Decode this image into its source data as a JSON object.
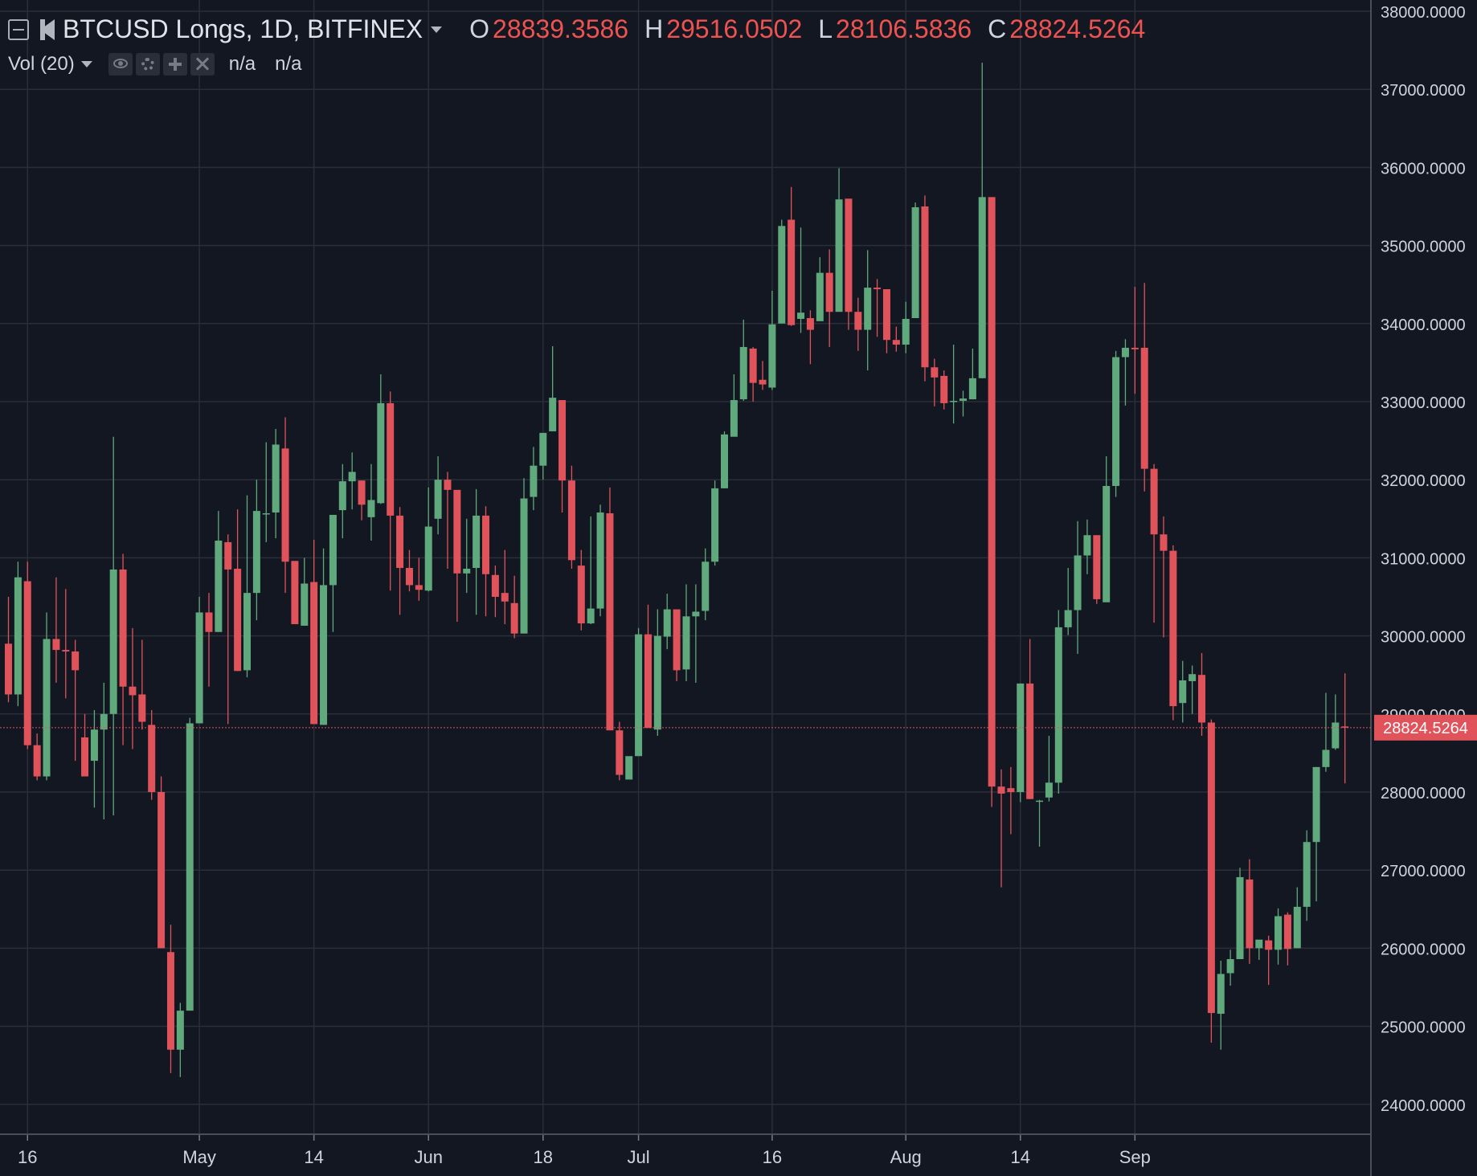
{
  "header": {
    "symbol_title": "BTCUSD Longs, 1D, BITFINEX",
    "open_key": "O",
    "open_value": "28839.3586",
    "high_key": "H",
    "high_value": "29516.0502",
    "low_key": "L",
    "low_value": "28106.5836",
    "close_key": "C",
    "close_value": "28824.5264"
  },
  "volume_indicator": {
    "label": "Vol (20)",
    "value_1": "n/a",
    "value_2": "n/a",
    "icons": [
      "eye-icon",
      "gear-icon",
      "plus-icon",
      "close-icon"
    ]
  },
  "colors": {
    "background": "#131722",
    "grid": "#2a2e39",
    "up": "#5fa97c",
    "down": "#e0535b",
    "price_line": "#e0535b",
    "text": "#d1d4dc"
  },
  "chart_data": {
    "type": "candlestick",
    "y_axis": {
      "ticks": [
        "24000.0000",
        "25000.0000",
        "26000.0000",
        "27000.0000",
        "28000.0000",
        "29000.0000",
        "30000.0000",
        "31000.0000",
        "32000.0000",
        "33000.0000",
        "34000.0000",
        "35000.0000",
        "36000.0000",
        "37000.0000",
        "38000.0000"
      ],
      "ylim": [
        23600,
        38000
      ],
      "side": "right"
    },
    "x_axis": {
      "labels": [
        "16",
        "May",
        "14",
        "Jun",
        "18",
        "Jul",
        "16",
        "Aug",
        "14",
        "Sep"
      ]
    },
    "last_price": "28824.5264",
    "grid": true,
    "ohlc": [
      [
        29900,
        29250,
        30500,
        29150
      ],
      [
        29250,
        30750,
        30950,
        29100
      ],
      [
        30700,
        28600,
        30950,
        28550
      ],
      [
        28600,
        28200,
        28750,
        28150
      ],
      [
        28200,
        29960,
        30300,
        28150
      ],
      [
        29960,
        29820,
        30750,
        29400
      ],
      [
        29820,
        29800,
        30600,
        29200
      ],
      [
        29800,
        29560,
        29950,
        28400
      ],
      [
        28700,
        28200,
        29000,
        28350
      ],
      [
        28400,
        28800,
        29050,
        27800
      ],
      [
        28800,
        29000,
        29400,
        27650
      ],
      [
        29000,
        30850,
        32550,
        27700
      ],
      [
        30850,
        29350,
        31050,
        28600
      ],
      [
        29350,
        29240,
        30100,
        28550
      ],
      [
        29250,
        28900,
        29950,
        28800
      ],
      [
        28860,
        28000,
        29050,
        27900
      ],
      [
        28000,
        26000,
        28200,
        26000
      ],
      [
        25950,
        24700,
        26300,
        24400
      ],
      [
        24700,
        25200,
        25300,
        24350
      ],
      [
        25200,
        28880,
        28950,
        25200
      ],
      [
        28880,
        30300,
        30500,
        28900
      ],
      [
        30300,
        30050,
        30550,
        29350
      ],
      [
        30050,
        31220,
        31600,
        30050
      ],
      [
        31200,
        30850,
        31300,
        28870
      ],
      [
        30860,
        29550,
        31620,
        29550
      ],
      [
        29560,
        30550,
        31800,
        29470
      ],
      [
        30550,
        31600,
        32000,
        30200
      ],
      [
        31560,
        31570,
        32480,
        31200
      ],
      [
        31580,
        32450,
        32650,
        31250
      ],
      [
        32400,
        30950,
        32800,
        30550
      ],
      [
        30960,
        30150,
        30890,
        30150
      ],
      [
        30130,
        30670,
        31000,
        30270
      ],
      [
        30690,
        28870,
        31230,
        29480
      ],
      [
        28860,
        30650,
        31120,
        28860
      ],
      [
        30650,
        31550,
        31400,
        30050
      ],
      [
        31610,
        31980,
        32200,
        31250
      ],
      [
        31980,
        32100,
        32350,
        31620
      ],
      [
        31990,
        31680,
        31970,
        31480
      ],
      [
        31520,
        31740,
        32200,
        31220
      ],
      [
        31700,
        32980,
        33350,
        31690
      ],
      [
        32980,
        31540,
        33130,
        30580
      ],
      [
        31540,
        30870,
        31650,
        30270
      ],
      [
        30870,
        30650,
        31100,
        30570
      ],
      [
        30650,
        30590,
        31000,
        30450
      ],
      [
        30580,
        31400,
        31900,
        30570
      ],
      [
        31500,
        32000,
        32300,
        31300
      ],
      [
        32000,
        31870,
        32100,
        30860
      ],
      [
        31870,
        30800,
        31150,
        30180
      ],
      [
        30800,
        30860,
        31500,
        30550
      ],
      [
        30870,
        31540,
        31880,
        30270
      ],
      [
        31540,
        30790,
        31660,
        30250
      ],
      [
        30780,
        30500,
        30900,
        30240
      ],
      [
        30550,
        30440,
        31100,
        30150
      ],
      [
        30420,
        30030,
        30770,
        29970
      ],
      [
        30030,
        31760,
        32020,
        30030
      ],
      [
        31780,
        32180,
        32420,
        31610
      ],
      [
        32180,
        32600,
        32550,
        32000
      ],
      [
        32620,
        33050,
        33710,
        32620
      ],
      [
        33020,
        31990,
        33000,
        31580
      ],
      [
        31990,
        30970,
        32180,
        30860
      ],
      [
        30900,
        30160,
        31100,
        30070
      ],
      [
        30160,
        30350,
        31530,
        30150
      ],
      [
        30350,
        31580,
        31680,
        30250
      ],
      [
        31570,
        28790,
        31900,
        28800
      ],
      [
        28790,
        28220,
        28900,
        28150
      ],
      [
        28160,
        28460,
        28300,
        28180
      ],
      [
        28460,
        30020,
        30100,
        28580
      ],
      [
        30020,
        28820,
        30400,
        28860
      ],
      [
        28800,
        30000,
        30340,
        28720
      ],
      [
        29990,
        30340,
        30540,
        29830
      ],
      [
        30340,
        29560,
        30330,
        29420
      ],
      [
        29570,
        30250,
        30660,
        29420
      ],
      [
        30250,
        30310,
        30660,
        29400
      ],
      [
        30320,
        30950,
        31120,
        30200
      ],
      [
        30950,
        31890,
        31990,
        30900
      ],
      [
        31890,
        32580,
        32620,
        31890
      ],
      [
        32550,
        33020,
        33350,
        32560
      ],
      [
        33030,
        33700,
        34050,
        33010
      ],
      [
        33680,
        33240,
        33700,
        33000
      ],
      [
        33280,
        33220,
        33520,
        33150
      ],
      [
        33180,
        33990,
        34420,
        33150
      ],
      [
        34000,
        35250,
        35330,
        34060
      ],
      [
        35330,
        33980,
        35750,
        33970
      ],
      [
        34060,
        34140,
        35230,
        33880
      ],
      [
        34070,
        33920,
        34170,
        33480
      ],
      [
        34030,
        34650,
        34850,
        34380
      ],
      [
        34650,
        34150,
        34950,
        33700
      ],
      [
        34150,
        35590,
        35990,
        34600
      ],
      [
        35600,
        34150,
        35550,
        33920
      ],
      [
        34150,
        33920,
        34330,
        33650
      ],
      [
        33920,
        34460,
        34940,
        33400
      ],
      [
        34460,
        34440,
        34570,
        33830
      ],
      [
        34440,
        33790,
        34440,
        33620
      ],
      [
        33790,
        33730,
        33960,
        33640
      ],
      [
        33730,
        34060,
        34280,
        33620
      ],
      [
        34070,
        35490,
        35550,
        34180
      ],
      [
        35500,
        33440,
        35640,
        33260
      ],
      [
        33440,
        33310,
        33550,
        32940
      ],
      [
        33330,
        32980,
        33400,
        32900
      ],
      [
        33010,
        33010,
        33730,
        32720
      ],
      [
        33010,
        33040,
        33140,
        32810
      ],
      [
        33030,
        33300,
        33680,
        33030
      ],
      [
        33300,
        35620,
        37340,
        33300
      ],
      [
        35620,
        28070,
        35600,
        27810
      ],
      [
        28070,
        27980,
        28290,
        26780
      ],
      [
        28050,
        28000,
        28320,
        27460
      ],
      [
        28000,
        29390,
        29370,
        27870
      ],
      [
        29390,
        27910,
        29960,
        27910
      ],
      [
        27880,
        27890,
        27900,
        27300
      ],
      [
        27930,
        28120,
        28720,
        27880
      ],
      [
        28120,
        30110,
        30330,
        27980
      ],
      [
        30110,
        30330,
        30870,
        30010
      ],
      [
        30330,
        31030,
        31470,
        29770
      ],
      [
        31030,
        31290,
        31490,
        30790
      ],
      [
        31290,
        30470,
        31180,
        30410
      ],
      [
        30430,
        31920,
        32300,
        30460
      ],
      [
        31920,
        33570,
        33650,
        31780
      ],
      [
        33570,
        33690,
        33800,
        32950
      ],
      [
        33690,
        33670,
        34470,
        33100
      ],
      [
        33690,
        32140,
        34520,
        31850
      ],
      [
        32140,
        31300,
        32200,
        30170
      ],
      [
        31300,
        31090,
        31530,
        29980
      ],
      [
        31090,
        29100,
        31160,
        28920
      ],
      [
        29140,
        29430,
        29680,
        28890
      ],
      [
        29420,
        29510,
        29620,
        29000
      ],
      [
        29500,
        28890,
        29780,
        28720
      ],
      [
        28890,
        25170,
        28930,
        24790
      ],
      [
        25160,
        25670,
        25840,
        24700
      ],
      [
        25680,
        25860,
        25980,
        25520
      ],
      [
        25860,
        26910,
        27030,
        25920
      ],
      [
        26880,
        26000,
        27140,
        25800
      ],
      [
        26000,
        26110,
        26080,
        25850
      ],
      [
        26100,
        25980,
        26160,
        25530
      ],
      [
        25980,
        26410,
        26510,
        25790
      ],
      [
        26430,
        25990,
        26460,
        25780
      ],
      [
        26000,
        26530,
        26780,
        26000
      ],
      [
        26530,
        27360,
        27510,
        26350
      ],
      [
        27360,
        28320,
        28320,
        26600
      ],
      [
        28320,
        28540,
        29270,
        28260
      ],
      [
        28560,
        28890,
        29250,
        28540
      ],
      [
        28840,
        28830,
        29520,
        28110
      ]
    ]
  }
}
